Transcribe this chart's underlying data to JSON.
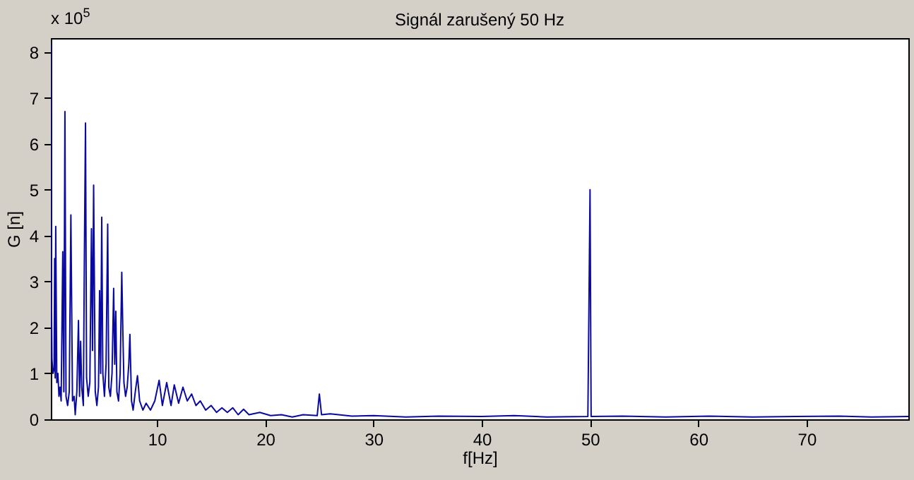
{
  "chart_data": {
    "type": "line",
    "title": "Signál zarušený 50 Hz",
    "xlabel": "f[Hz]",
    "ylabel": "G [n]",
    "annotations": [
      "x 10$^{5}$"
    ],
    "xlim": [
      0.2,
      79.4
    ],
    "xticks": [
      10,
      20,
      30,
      40,
      50,
      60,
      70
    ],
    "ylim": [
      0,
      8.3
    ],
    "yticks": [
      0,
      1,
      2,
      3,
      4,
      5,
      6,
      7,
      8
    ],
    "grid": false,
    "legend": false,
    "series": [
      {
        "color": "#0a0aa0",
        "x": [
          0.2,
          0.25,
          0.3,
          0.4,
          0.5,
          0.55,
          0.6,
          0.65,
          0.75,
          0.85,
          0.95,
          1.05,
          1.15,
          1.3,
          1.4,
          1.5,
          1.6,
          1.75,
          1.9,
          2.05,
          2.2,
          2.35,
          2.45,
          2.6,
          2.75,
          2.85,
          2.95,
          3.05,
          3.2,
          3.3,
          3.4,
          3.5,
          3.65,
          3.8,
          3.95,
          4.05,
          4.15,
          4.3,
          4.45,
          4.6,
          4.7,
          4.8,
          4.9,
          5.0,
          5.15,
          5.3,
          5.45,
          5.55,
          5.7,
          5.85,
          6.0,
          6.1,
          6.2,
          6.3,
          6.45,
          6.6,
          6.75,
          6.85,
          6.95,
          7.1,
          7.25,
          7.4,
          7.5,
          7.65,
          7.8,
          8.0,
          8.2,
          8.4,
          8.7,
          9.0,
          9.4,
          9.8,
          10.2,
          10.5,
          10.9,
          11.3,
          11.6,
          12.0,
          12.4,
          12.8,
          13.2,
          13.6,
          14.0,
          14.5,
          15.0,
          15.5,
          16.0,
          16.5,
          17.0,
          17.5,
          18.0,
          18.5,
          19.5,
          20.5,
          21.5,
          22.5,
          23.5,
          24.8,
          25.0,
          25.2,
          26,
          28,
          30,
          33,
          36,
          40,
          43,
          46,
          49.8,
          49.9,
          50.0,
          50.1,
          53,
          57,
          61,
          65,
          69,
          73,
          76,
          79.4
        ],
        "values": [
          8.2,
          2.8,
          1.3,
          1.0,
          1.1,
          3.5,
          0.9,
          4.2,
          0.8,
          1.0,
          0.5,
          0.7,
          0.4,
          3.65,
          0.6,
          6.7,
          0.5,
          0.3,
          0.6,
          4.45,
          0.4,
          0.5,
          0.1,
          0.6,
          2.15,
          0.5,
          1.7,
          0.7,
          0.3,
          3.65,
          6.45,
          0.9,
          0.5,
          0.8,
          4.15,
          1.5,
          5.1,
          0.6,
          0.3,
          0.7,
          2.8,
          1.0,
          4.4,
          1.0,
          0.5,
          1.2,
          4.25,
          0.7,
          0.5,
          1.0,
          2.85,
          1.2,
          2.35,
          0.6,
          0.4,
          1.0,
          3.2,
          1.9,
          0.8,
          0.5,
          0.7,
          1.2,
          1.85,
          0.4,
          0.2,
          0.6,
          0.95,
          0.4,
          0.2,
          0.35,
          0.2,
          0.4,
          0.85,
          0.3,
          0.8,
          0.3,
          0.75,
          0.35,
          0.7,
          0.4,
          0.55,
          0.3,
          0.4,
          0.2,
          0.3,
          0.15,
          0.25,
          0.15,
          0.25,
          0.1,
          0.22,
          0.1,
          0.15,
          0.08,
          0.1,
          0.05,
          0.1,
          0.08,
          0.55,
          0.1,
          0.12,
          0.07,
          0.08,
          0.05,
          0.07,
          0.06,
          0.08,
          0.05,
          0.06,
          2.5,
          5.0,
          0.06,
          0.07,
          0.05,
          0.07,
          0.05,
          0.06,
          0.07,
          0.05,
          0.06
        ]
      }
    ]
  }
}
